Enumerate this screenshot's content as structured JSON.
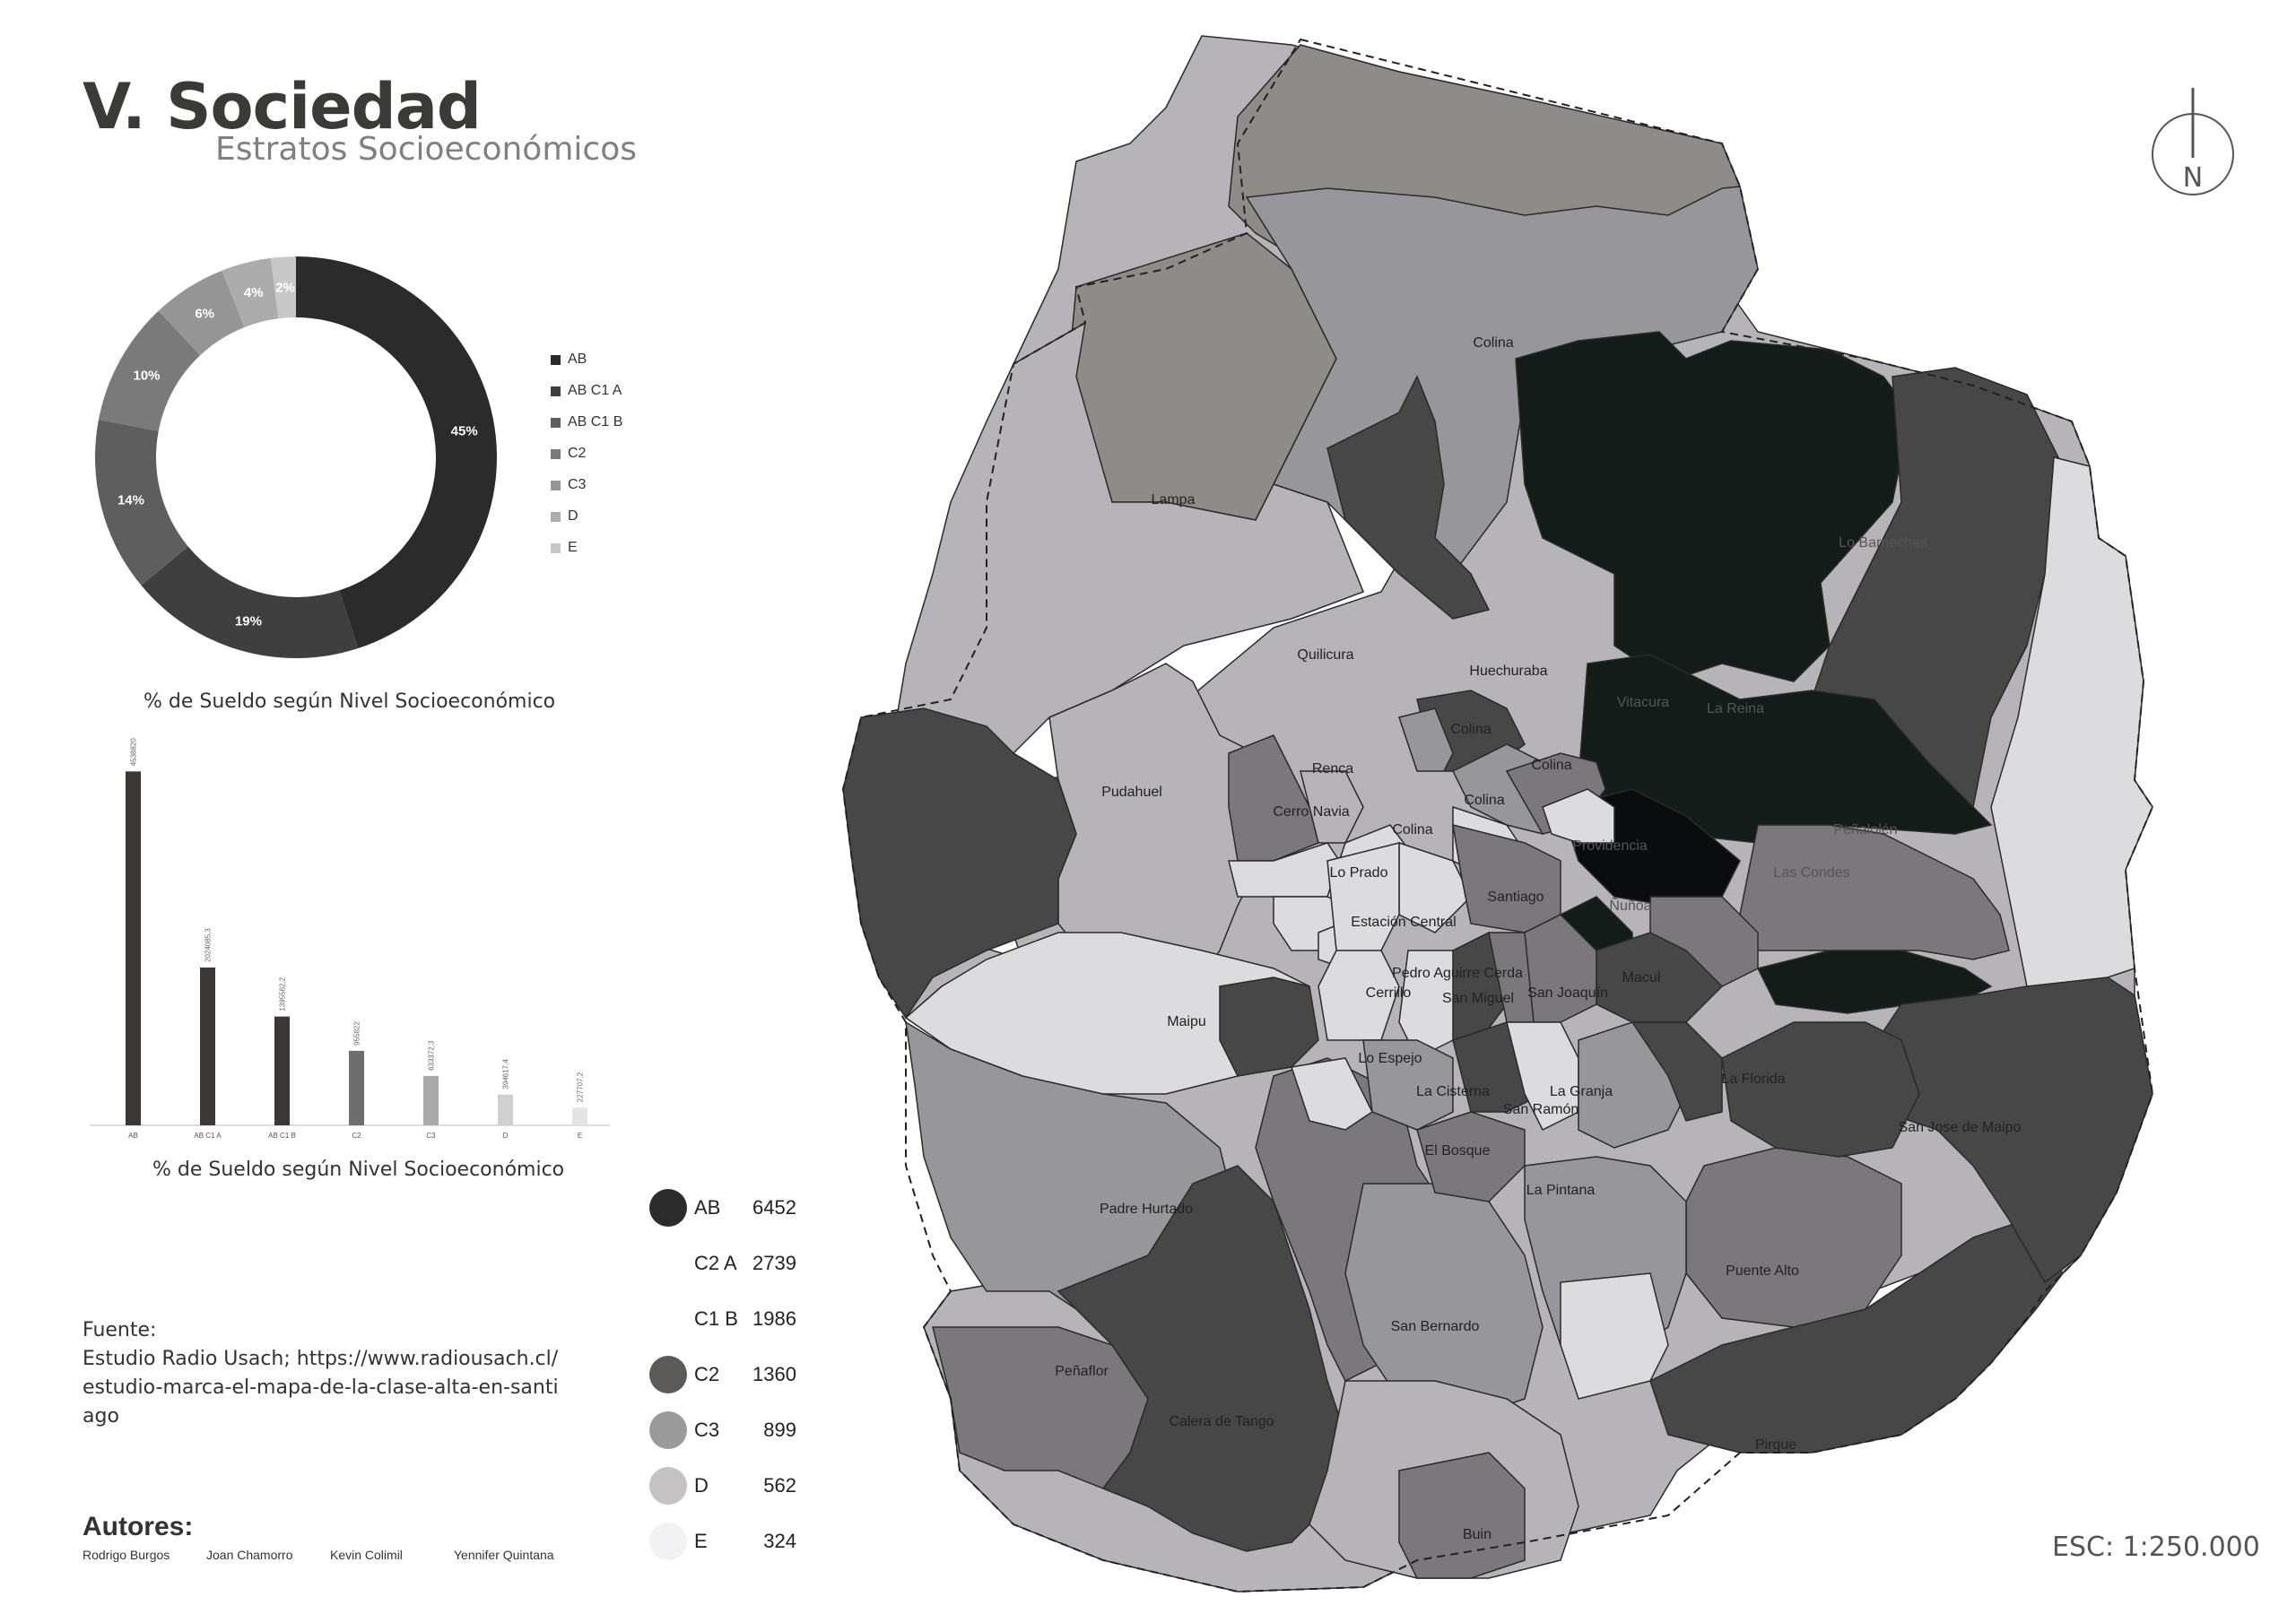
{
  "header": {
    "title": "V. Sociedad",
    "subtitle": "Estratos Socioeconómicos"
  },
  "donut": {
    "caption": "% de Sueldo según Nivel Socioeconómico",
    "segments": [
      {
        "label": "AB",
        "percent": 45,
        "text": "45%",
        "color": "#2b2b2b"
      },
      {
        "label": "AB C1 A",
        "percent": 19,
        "text": "19%",
        "color": "#3f3f3f"
      },
      {
        "label": "AB C1 B",
        "percent": 14,
        "text": "14%",
        "color": "#5e5e5e"
      },
      {
        "label": "C2",
        "percent": 10,
        "text": "10%",
        "color": "#7a7a7a"
      },
      {
        "label": "C3",
        "percent": 6,
        "text": "6%",
        "color": "#959595"
      },
      {
        "label": "D",
        "percent": 4,
        "text": "4%",
        "color": "#acacac"
      },
      {
        "label": "E",
        "percent": 2,
        "text": "2%",
        "color": "#c8c8c8"
      }
    ]
  },
  "chart_data": {
    "type": "bar",
    "title": "% de Sueldo según Nivel Socioeconómico",
    "categories": [
      "AB",
      "AB C1 A",
      "AB C1 B",
      "C2",
      "C3",
      "D",
      "E"
    ],
    "values": [
      4538820,
      2024085.3,
      1395562.2,
      955822,
      633372.3,
      394617.4,
      227707.2
    ],
    "value_labels": [
      "4538820",
      "2024085,3",
      "1395562,2",
      "955822",
      "633372,3",
      "394617,4",
      "227707,2"
    ],
    "colors": [
      "#3a3734",
      "#3a3734",
      "#3a3734",
      "#6e6e6e",
      "#aaaaaa",
      "#d0d0d0",
      "#e4e4e4"
    ],
    "ylim": [
      0,
      4600000
    ]
  },
  "strata_legend": [
    {
      "label": "AB",
      "value": "6452",
      "color": "#2b2b2b"
    },
    {
      "label": "C2 A",
      "value": "2739",
      "color": "#ffffff"
    },
    {
      "label": "C1 B",
      "value": "1986",
      "color": "#ffffff"
    },
    {
      "label": "C2",
      "value": "1360",
      "color": "#5c5a58"
    },
    {
      "label": "C3",
      "value": "899",
      "color": "#9a9a9a"
    },
    {
      "label": "D",
      "value": "562",
      "color": "#c4c2c2"
    },
    {
      "label": "E",
      "value": "324",
      "color": "#f2f2f4"
    }
  ],
  "source": {
    "label": "Fuente:",
    "text": "Estudio Radio Usach; https://www.radiousach.cl/estudio-marca-el-mapa-de-la-clase-alta-en-santiago"
  },
  "authors": {
    "title": "Autores:",
    "names": [
      "Rodrigo Burgos",
      "Joan Chamorro",
      "Kevin Colimil",
      "Yennifer Quintana"
    ]
  },
  "north": {
    "letter": "N",
    "icon": "north-arrow-icon"
  },
  "scale": "ESC: 1:250.000",
  "map": {
    "comunas": [
      "Colina",
      "Lampa",
      "Lo Barnechea",
      "Quilicura",
      "Huechuraba",
      "Colina",
      "Colina",
      "Colina",
      "Renca",
      "Pudahuel",
      "Cerro Navia",
      "Colina",
      "Lo Prado",
      "Vitacura",
      "Providencia",
      "Santiago",
      "Ñuñoa",
      "Las Condes",
      "Estación Central",
      "Pedro Aguirre Cerda",
      "Cerrillo",
      "Maipu",
      "San Miguel",
      "San Joaquín",
      "Macul",
      "Lo Espejo",
      "La Cisterna",
      "La Granja",
      "San Ramón",
      "La Florida",
      "El Bosque",
      "La Pintana",
      "San Jose de Maipo",
      "Padre Hurtado",
      "Puente Alto",
      "San Bernardo",
      "Peñaflor",
      "Calera de Tango",
      "Pirque",
      "Buin",
      "La Reina",
      "Peñalolén"
    ],
    "colors": {
      "dark": "#131c18",
      "charcoal": "#474747",
      "mid": "#7b787b",
      "steel": "#96969b",
      "light": "#b6b4b8",
      "pale": "#dcdcde",
      "north": "#8f8b88"
    }
  }
}
